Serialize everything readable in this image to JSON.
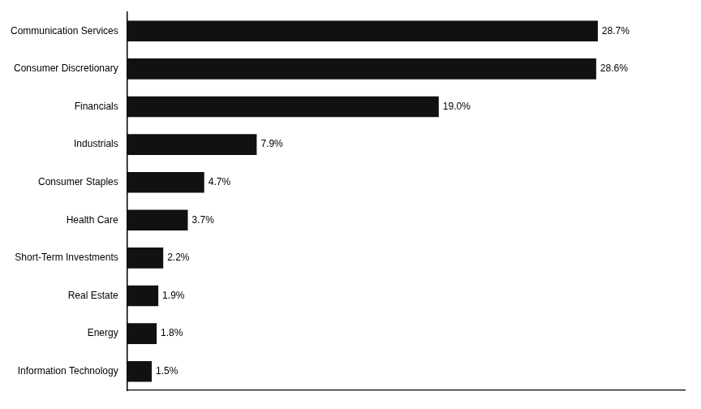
{
  "chart_data": {
    "type": "bar",
    "orientation": "horizontal",
    "categories": [
      "Information Technology",
      "Energy",
      "Real Estate",
      "Short-Term Investments",
      "Health Care",
      "Consumer Staples",
      "Industrials",
      "Financials",
      "Consumer Discretionary",
      "Communication Services"
    ],
    "values": [
      1.5,
      1.8,
      1.9,
      2.2,
      3.7,
      4.7,
      7.9,
      19.0,
      28.6,
      28.7
    ],
    "value_labels": [
      "1.5%",
      "1.8%",
      "1.9%",
      "2.2%",
      "3.7%",
      "4.7%",
      "7.9%",
      "19.0%",
      "28.6%",
      "28.7%"
    ],
    "data_labels": true,
    "color": "#111111",
    "xlim": [
      0,
      34
    ],
    "tick_labels": "y",
    "grid": false
  }
}
